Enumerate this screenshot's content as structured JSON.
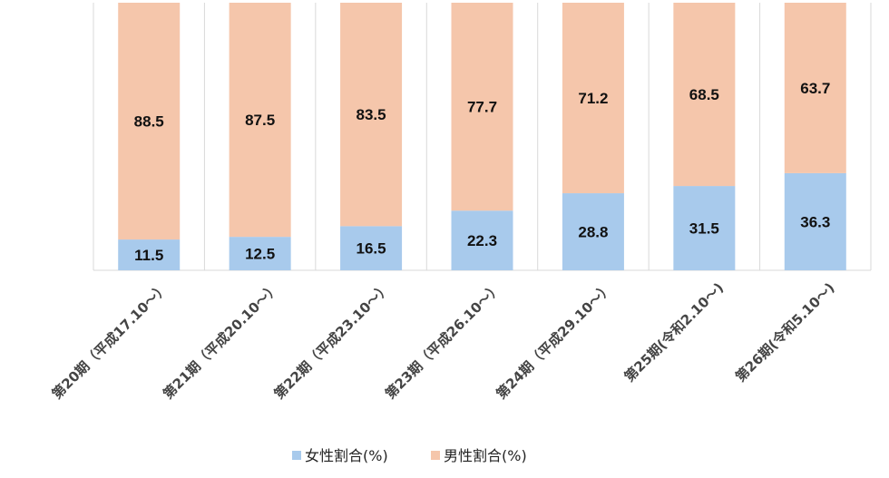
{
  "chart_data": {
    "type": "bar",
    "stacked": true,
    "categories": [
      "第20期（平成17.10～）",
      "第21期（平成20.10～）",
      "第22期（平成23.10～）",
      "第23期（平成26.10～）",
      "第24期（平成29.10～）",
      "第25期(令和2.10～)",
      "第26期(令和5.10～)"
    ],
    "series": [
      {
        "name": "女性割合(%)",
        "color": "#a8caec",
        "values": [
          11.5,
          12.5,
          16.5,
          22.3,
          28.8,
          31.5,
          36.3
        ]
      },
      {
        "name": "男性割合(%)",
        "color": "#f5c6ab",
        "values": [
          88.5,
          87.5,
          83.5,
          77.7,
          71.2,
          68.5,
          63.7
        ]
      }
    ],
    "ylim": [
      0,
      100
    ],
    "grid": "vertical separators",
    "legend": "bottom",
    "data_labels": true
  }
}
